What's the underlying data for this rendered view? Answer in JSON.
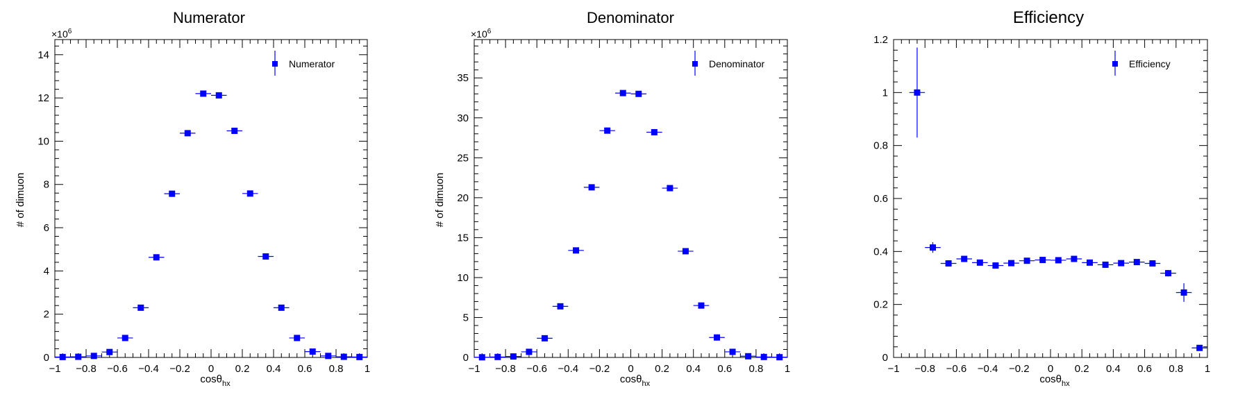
{
  "colors": {
    "marker": "#0000ff",
    "axis": "#000000",
    "background": "#ffffff"
  },
  "chart_data": [
    {
      "type": "scatter",
      "title": "Numerator",
      "xlabel": "cosθ",
      "xlabel_sub": "hx",
      "ylabel": "# of dimuon",
      "multiplier": "×10",
      "multiplier_exp": "6",
      "xlim": [
        -1,
        1
      ],
      "ylim": [
        0,
        14.7
      ],
      "xticks": [
        -1,
        -0.8,
        -0.6,
        -0.4,
        -0.2,
        0,
        0.2,
        0.4,
        0.6,
        0.8,
        1
      ],
      "xtick_labels": [
        "−1",
        "−0.8",
        "−0.6",
        "−0.4",
        "−0.2",
        "0",
        "0.2",
        "0.4",
        "0.6",
        "0.8",
        "1"
      ],
      "yticks": [
        0,
        2,
        4,
        6,
        8,
        10,
        12,
        14
      ],
      "ytick_labels": [
        "0",
        "2",
        "4",
        "6",
        "8",
        "10",
        "12",
        "14"
      ],
      "legend": {
        "label": "Numerator",
        "position": "top-right"
      },
      "grid": false,
      "x": [
        -0.95,
        -0.85,
        -0.75,
        -0.65,
        -0.55,
        -0.45,
        -0.35,
        -0.25,
        -0.15,
        -0.05,
        0.05,
        0.15,
        0.25,
        0.35,
        0.45,
        0.55,
        0.65,
        0.75,
        0.85,
        0.95
      ],
      "x_err": 0.05,
      "y": [
        0.02,
        0.03,
        0.07,
        0.25,
        0.9,
        2.3,
        4.63,
        7.57,
        10.37,
        12.2,
        12.12,
        10.48,
        7.58,
        4.67,
        2.3,
        0.9,
        0.27,
        0.07,
        0.03,
        0.02
      ],
      "y_err": [
        0,
        0,
        0,
        0,
        0,
        0,
        0,
        0,
        0,
        0,
        0,
        0,
        0,
        0,
        0,
        0,
        0,
        0,
        0,
        0
      ]
    },
    {
      "type": "scatter",
      "title": "Denominator",
      "xlabel": "cosθ",
      "xlabel_sub": "hx",
      "ylabel": "# of dimuon",
      "multiplier": "×10",
      "multiplier_exp": "6",
      "xlim": [
        -1,
        1
      ],
      "ylim": [
        0,
        39.8
      ],
      "xticks": [
        -1,
        -0.8,
        -0.6,
        -0.4,
        -0.2,
        0,
        0.2,
        0.4,
        0.6,
        0.8,
        1
      ],
      "xtick_labels": [
        "−1",
        "−0.8",
        "−0.6",
        "−0.4",
        "−0.2",
        "0",
        "0.2",
        "0.4",
        "0.6",
        "0.8",
        "1"
      ],
      "yticks": [
        0,
        5,
        10,
        15,
        20,
        25,
        30,
        35
      ],
      "ytick_labels": [
        "0",
        "5",
        "10",
        "15",
        "20",
        "25",
        "30",
        "35"
      ],
      "legend": {
        "label": "Denominator",
        "position": "top-right"
      },
      "grid": false,
      "x": [
        -0.95,
        -0.85,
        -0.75,
        -0.65,
        -0.55,
        -0.45,
        -0.35,
        -0.25,
        -0.15,
        -0.05,
        0.05,
        0.15,
        0.25,
        0.35,
        0.45,
        0.55,
        0.65,
        0.75,
        0.85,
        0.95
      ],
      "x_err": 0.05,
      "y": [
        0.02,
        0.06,
        0.12,
        0.7,
        2.4,
        6.4,
        13.4,
        21.3,
        28.4,
        33.1,
        33.0,
        28.2,
        21.2,
        13.3,
        6.5,
        2.5,
        0.7,
        0.15,
        0.06,
        0.03
      ],
      "y_err": [
        0,
        0,
        0,
        0,
        0,
        0,
        0,
        0,
        0,
        0,
        0,
        0,
        0,
        0,
        0,
        0,
        0,
        0,
        0,
        0
      ]
    },
    {
      "type": "scatter",
      "title": "Efficiency",
      "xlabel": "cosθ",
      "xlabel_sub": "hx",
      "ylabel": "",
      "multiplier": "",
      "multiplier_exp": "",
      "xlim": [
        -1,
        1
      ],
      "ylim": [
        0,
        1.2
      ],
      "xticks": [
        -1,
        -0.8,
        -0.6,
        -0.4,
        -0.2,
        0,
        0.2,
        0.4,
        0.6,
        0.8,
        1
      ],
      "xtick_labels": [
        "−1",
        "−0.8",
        "−0.6",
        "−0.4",
        "−0.2",
        "0",
        "0.2",
        "0.4",
        "0.6",
        "0.8",
        "1"
      ],
      "yticks": [
        0,
        0.2,
        0.4,
        0.6,
        0.8,
        1,
        1.2
      ],
      "ytick_labels": [
        "0",
        "0.2",
        "0.4",
        "0.6",
        "0.8",
        "1",
        "1.2"
      ],
      "legend": {
        "label": "Efficiency",
        "position": "top-right"
      },
      "grid": false,
      "x": [
        -0.85,
        -0.75,
        -0.65,
        -0.55,
        -0.45,
        -0.35,
        -0.25,
        -0.15,
        -0.05,
        0.05,
        0.15,
        0.25,
        0.35,
        0.45,
        0.55,
        0.65,
        0.75,
        0.85,
        0.95
      ],
      "x_err": 0.05,
      "y": [
        1.0,
        0.415,
        0.355,
        0.372,
        0.358,
        0.347,
        0.356,
        0.365,
        0.368,
        0.367,
        0.372,
        0.358,
        0.35,
        0.356,
        0.36,
        0.355,
        0.318,
        0.245,
        0.036
      ],
      "y_err": [
        0.17,
        0.02,
        0.008,
        0.006,
        0.005,
        0.004,
        0.004,
        0.003,
        0.003,
        0.003,
        0.003,
        0.004,
        0.004,
        0.005,
        0.006,
        0.008,
        0.012,
        0.035,
        0.004
      ]
    }
  ]
}
